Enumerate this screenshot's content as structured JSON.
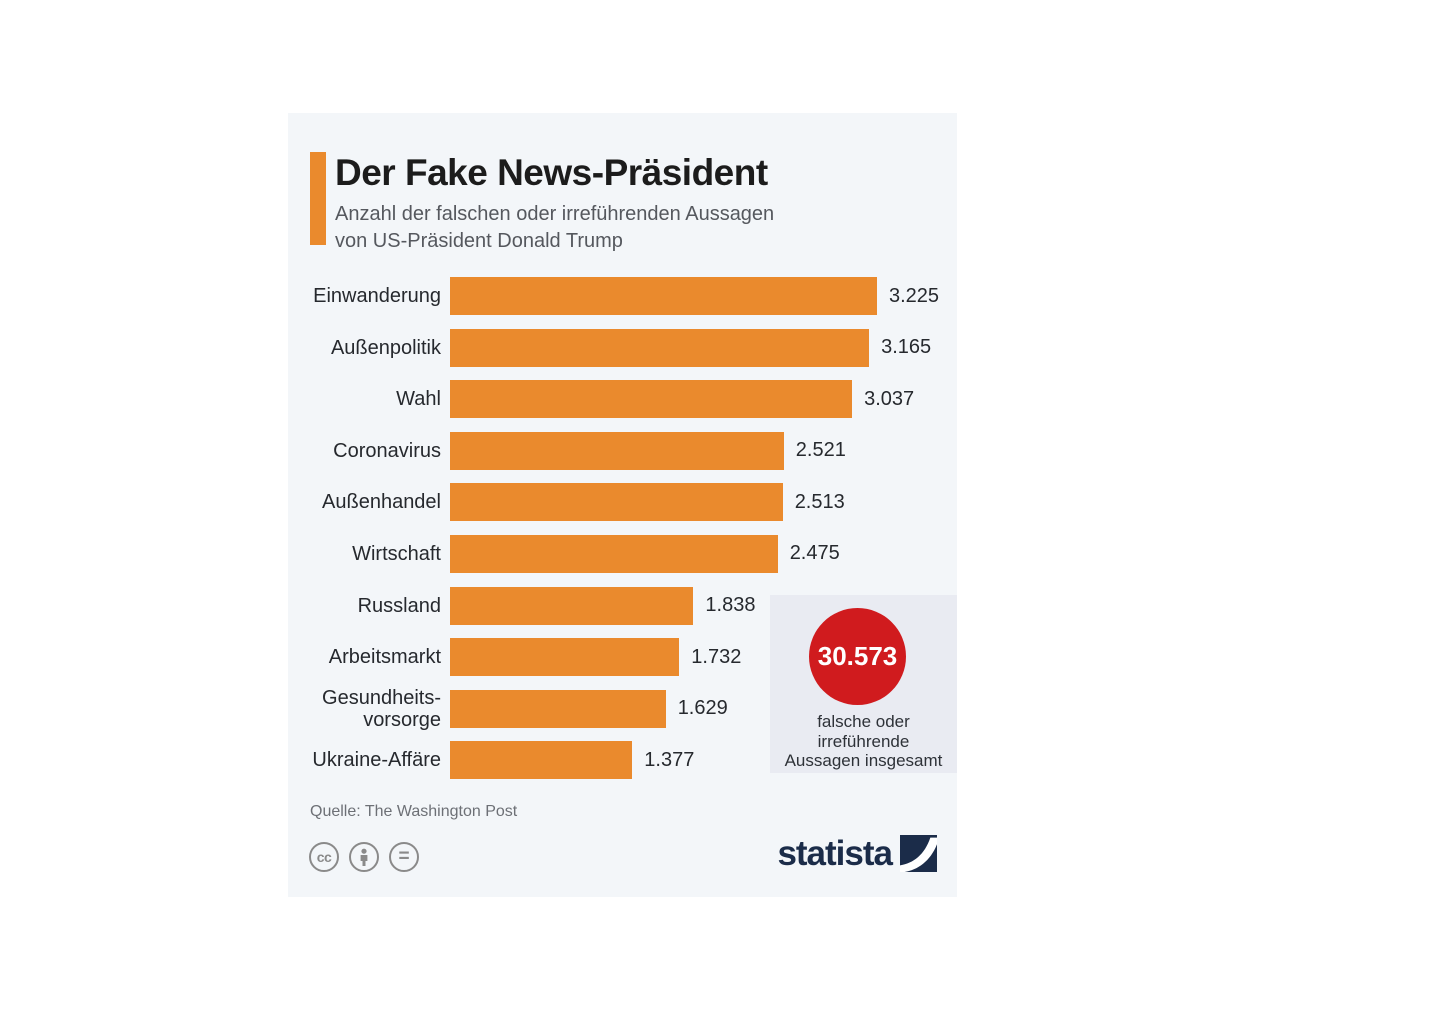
{
  "header": {
    "title": "Der Fake News-Präsident",
    "subtitle_line1": "Anzahl der falschen oder irreführenden Aussagen",
    "subtitle_line2": "von US-Präsident Donald Trump",
    "accent_color": "#ea8a2d"
  },
  "chart_data": {
    "type": "bar",
    "orientation": "horizontal",
    "title": "Der Fake News-Präsident",
    "subtitle": "Anzahl der falschen oder irreführenden Aussagen von US-Präsident Donald Trump",
    "categories": [
      "Einwanderung",
      "Außenpolitik",
      "Wahl",
      "Coronavirus",
      "Außenhandel",
      "Wirtschaft",
      "Russland",
      "Arbeitsmarkt",
      "Gesundheits-\nvorsorge",
      "Ukraine-Affäre"
    ],
    "values": [
      3225,
      3165,
      3037,
      2521,
      2513,
      2475,
      1838,
      1732,
      1629,
      1377
    ],
    "value_labels": [
      "3.225",
      "3.165",
      "3.037",
      "2.521",
      "2.513",
      "2.475",
      "1.838",
      "1.732",
      "1.629",
      "1.377"
    ],
    "xlim": [
      0,
      3225
    ],
    "bar_color": "#ea8a2d",
    "grid": "off",
    "legend": "none",
    "value_label_position": "right-of-bar"
  },
  "callout": {
    "total": "30.573",
    "caption": "falsche oder\nirreführende\nAussagen insgesamt",
    "circle_color": "#d01b1e"
  },
  "footer": {
    "source": "Quelle: The Washington Post",
    "license": {
      "cc": "cc",
      "nd": "="
    },
    "brand": "statista",
    "brand_color": "#1b2c49"
  }
}
